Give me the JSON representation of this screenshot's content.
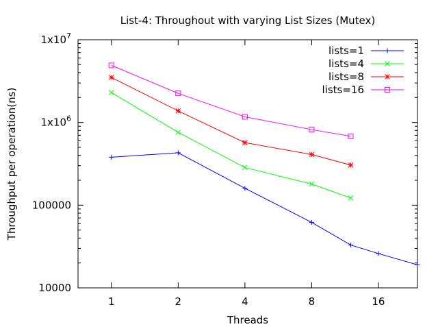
{
  "chart_data": {
    "type": "line",
    "title": "List-4: Throughout with varying List Sizes (Mutex)",
    "xlabel": "Threads",
    "ylabel": "Throughput per operation(ns)",
    "x_scale": "log2",
    "y_scale": "log10",
    "xlim": [
      0.707,
      24
    ],
    "ylim": [
      10000,
      10000000
    ],
    "x_ticks": [
      {
        "value": 1,
        "label": "1"
      },
      {
        "value": 2,
        "label": "2"
      },
      {
        "value": 4,
        "label": "4"
      },
      {
        "value": 8,
        "label": "8"
      },
      {
        "value": 16,
        "label": "16"
      }
    ],
    "y_ticks": [
      {
        "value": 10000,
        "base": "10000",
        "exp": ""
      },
      {
        "value": 100000,
        "base": "100000",
        "exp": ""
      },
      {
        "value": 1000000,
        "base": "1x10",
        "exp": "6"
      },
      {
        "value": 10000000,
        "base": "1x10",
        "exp": "7"
      }
    ],
    "grid": false,
    "legend_position": "top-right",
    "series": [
      {
        "name": "lists=1",
        "color": "#0000ff",
        "marker": "plus",
        "points": [
          [
            1,
            380000
          ],
          [
            2,
            430000
          ],
          [
            4,
            160000
          ],
          [
            8,
            62000
          ],
          [
            12,
            33000
          ],
          [
            16,
            26000
          ],
          [
            24,
            19000
          ]
        ]
      },
      {
        "name": "lists=4",
        "color": "#00ff00",
        "marker": "cross",
        "points": [
          [
            1,
            2300000
          ],
          [
            2,
            760000
          ],
          [
            4,
            285000
          ],
          [
            8,
            180000
          ],
          [
            12,
            122000
          ]
        ]
      },
      {
        "name": "lists=8",
        "color": "#ff0000",
        "marker": "star",
        "points": [
          [
            1,
            3500000
          ],
          [
            2,
            1380000
          ],
          [
            4,
            570000
          ],
          [
            8,
            410000
          ],
          [
            12,
            305000
          ]
        ]
      },
      {
        "name": "lists=16",
        "color": "#ff00ff",
        "marker": "square",
        "points": [
          [
            1,
            4900000
          ],
          [
            2,
            2250000
          ],
          [
            4,
            1170000
          ],
          [
            8,
            820000
          ],
          [
            12,
            680000
          ]
        ]
      }
    ]
  }
}
